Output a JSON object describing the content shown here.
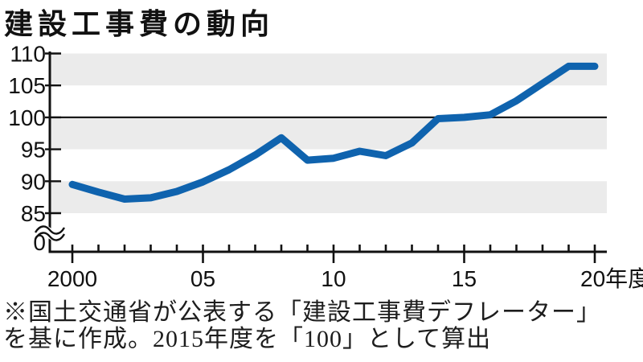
{
  "page": {
    "title": "建設工事費の動向"
  },
  "footnote": {
    "line1": "※国土交通省が公表する「建設工事費デフレーター」",
    "line2": "を基に作成。2015年度を「100」として算出"
  },
  "chart_data": {
    "type": "line",
    "title": "建設工事費の動向",
    "years": [
      2000,
      2001,
      2002,
      2003,
      2004,
      2005,
      2006,
      2007,
      2008,
      2009,
      2010,
      2011,
      2012,
      2013,
      2014,
      2015,
      2016,
      2017,
      2018,
      2019,
      2020
    ],
    "values": [
      89.5,
      88.3,
      87.2,
      87.4,
      88.4,
      89.9,
      91.8,
      94.1,
      96.8,
      93.3,
      93.6,
      94.7,
      94.0,
      96.0,
      99.8,
      100.0,
      100.4,
      102.6,
      105.3,
      108.0,
      108.0
    ],
    "series_name": "建設工事費デフレーター（2015年度=100）",
    "y_tick_values": [
      110,
      105,
      100,
      95,
      90,
      85
    ],
    "y_tick_labels": [
      "110",
      "105",
      "100",
      "95",
      "90",
      "85"
    ],
    "y_axis_origin_label": "0",
    "x_major_tick_years": [
      2000,
      2005,
      2010,
      2015,
      2020
    ],
    "x_major_tick_labels": [
      "2000",
      "05",
      "10",
      "15",
      "20年度"
    ],
    "ylim_display": [
      85,
      110
    ],
    "reference_line_value": 100,
    "shaded_bands": [
      [
        105,
        110
      ],
      [
        95,
        100
      ],
      [
        85,
        90
      ]
    ],
    "axis_break": true,
    "grid": "banded",
    "legend": "none",
    "colors": {
      "line": "#0f63ae",
      "band": "#ebebeb",
      "axis": "#111111",
      "reference_line": "#1a1a1a"
    }
  }
}
